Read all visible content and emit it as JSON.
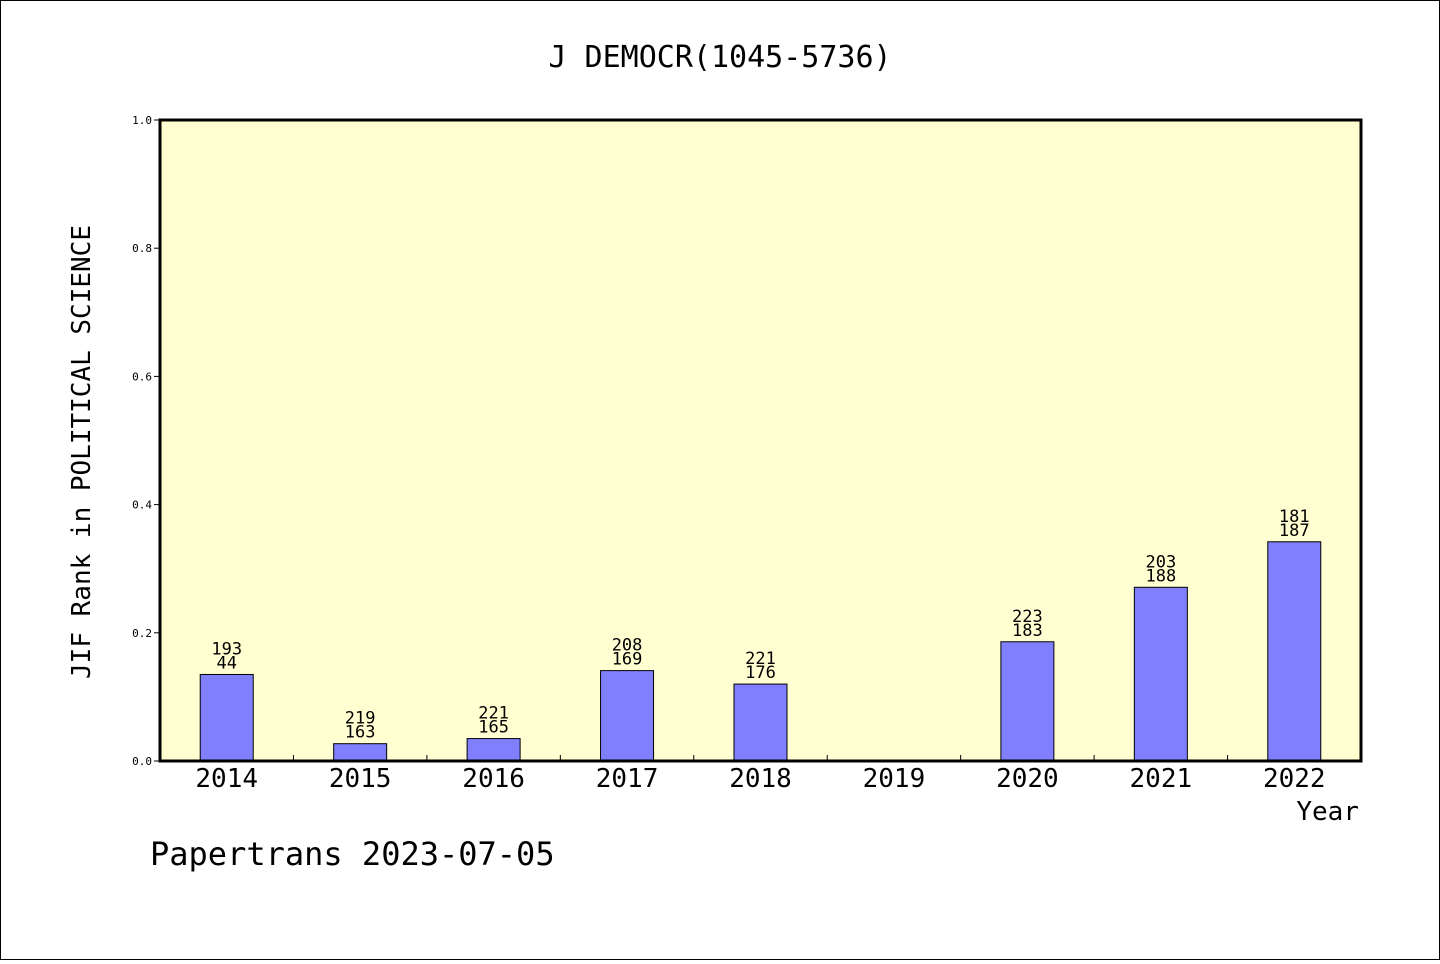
{
  "chart_data": {
    "type": "bar",
    "title": "J DEMOCR(1045-5736)",
    "xlabel": "Year",
    "ylabel": "JIF Rank in POLITICAL SCIENCE",
    "ylim": [
      0,
      1
    ],
    "y_ticks": [
      "0.0",
      "0.2",
      "0.4",
      "0.6",
      "0.8",
      "1.0"
    ],
    "categories": [
      "2014",
      "2015",
      "2016",
      "2017",
      "2018",
      "2019",
      "2020",
      "2021",
      "2022"
    ],
    "values": [
      0.135,
      0.027,
      0.035,
      0.141,
      0.12,
      null,
      0.186,
      0.271,
      0.342
    ],
    "label_top": [
      "193",
      "219",
      "221",
      "208",
      "221",
      "",
      "223",
      "203",
      "181"
    ],
    "label_bottom": [
      "44",
      "163",
      "165",
      "169",
      "176",
      "",
      "183",
      "188",
      "187"
    ],
    "plot_background": "#ffffd2",
    "bar_color": "#8080ff",
    "grid": false
  },
  "footer": "Papertrans 2023-07-05"
}
